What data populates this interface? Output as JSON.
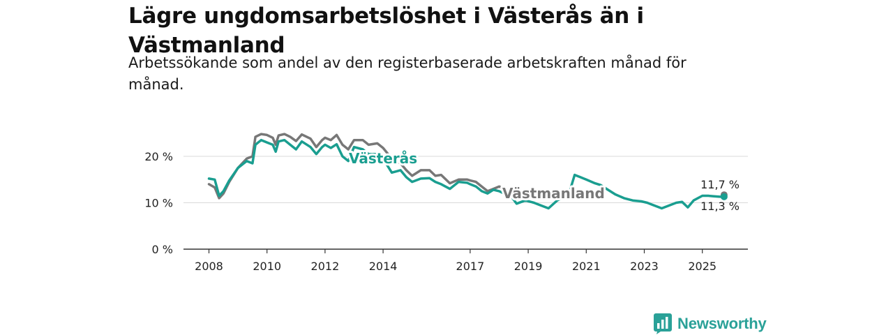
{
  "title": "Lägre ungdomsarbetslöshet i Västerås än i Västmanland",
  "subtitle": "Arbetssökande som andel av den registerbaserade arbetskraften månad för månad.",
  "brand": {
    "name": "Newsworthy",
    "icon": "bar-chart-icon",
    "color": "#2aa198"
  },
  "chart_data": {
    "type": "line",
    "title": "",
    "xlabel": "",
    "ylabel": "",
    "ylim": [
      0,
      25
    ],
    "xlim": [
      2008.0,
      2026.15
    ],
    "x_ticks": [
      {
        "value": 2008,
        "label": "2008"
      },
      {
        "value": 2010,
        "label": "2010"
      },
      {
        "value": 2012,
        "label": "2012"
      },
      {
        "value": 2014,
        "label": "2014"
      },
      {
        "value": 2017,
        "label": "2017"
      },
      {
        "value": 2019,
        "label": "2019"
      },
      {
        "value": 2021,
        "label": "2021"
      },
      {
        "value": 2023,
        "label": "2023"
      },
      {
        "value": 2025,
        "label": "2025"
      }
    ],
    "y_ticks": [
      {
        "value": 0,
        "label": "0 %"
      },
      {
        "value": 10,
        "label": "10 %"
      },
      {
        "value": 20,
        "label": "20 %"
      }
    ],
    "series": [
      {
        "name": "Västmanland",
        "color": "#777777",
        "label": "Västmanland",
        "end_label": "11,7 %",
        "x": [
          2008.0,
          2008.2,
          2008.35,
          2008.5,
          2008.7,
          2009.0,
          2009.3,
          2009.5,
          2009.6,
          2009.8,
          2010.0,
          2010.2,
          2010.3,
          2010.4,
          2010.6,
          2010.8,
          2011.0,
          2011.2,
          2011.5,
          2011.7,
          2011.9,
          2012.0,
          2012.2,
          2012.4,
          2012.6,
          2012.8,
          2013.0,
          2013.3,
          2013.5,
          2013.8,
          2014.0,
          2014.3,
          2014.6,
          2014.8,
          2015.0,
          2015.3,
          2015.6,
          2015.8,
          2016.0,
          2016.3,
          2016.6,
          2016.9,
          2017.0,
          2017.2,
          2017.4,
          2017.6,
          2017.8,
          2018.0,
          2018.1
        ],
        "values": [
          14.0,
          13.3,
          11.0,
          12.0,
          14.5,
          17.5,
          19.5,
          20.0,
          24.2,
          24.8,
          24.6,
          24.0,
          22.5,
          24.5,
          24.8,
          24.2,
          23.3,
          24.7,
          23.8,
          22.0,
          23.5,
          24.0,
          23.5,
          24.6,
          22.5,
          21.5,
          23.5,
          23.5,
          22.5,
          22.8,
          21.8,
          19.5,
          18.5,
          17.0,
          15.8,
          17.0,
          17.0,
          15.8,
          16.0,
          14.2,
          15.0,
          15.0,
          14.8,
          14.5,
          13.5,
          12.5,
          13.0,
          13.5,
          13.2
        ]
      },
      {
        "name": "Västerås",
        "color": "#1a9e90",
        "label": "Västerås",
        "end_label": "11,3 %",
        "x": [
          2008.0,
          2008.2,
          2008.35,
          2008.5,
          2008.7,
          2009.0,
          2009.3,
          2009.5,
          2009.6,
          2009.8,
          2010.0,
          2010.2,
          2010.3,
          2010.4,
          2010.6,
          2010.8,
          2011.0,
          2011.2,
          2011.5,
          2011.7,
          2011.9,
          2012.0,
          2012.2,
          2012.4,
          2012.6,
          2012.8,
          2013.0,
          2013.3,
          2013.5,
          2013.8,
          2014.0,
          2014.3,
          2014.6,
          2014.8,
          2015.0,
          2015.3,
          2015.6,
          2015.8,
          2016.0,
          2016.3,
          2016.6,
          2016.9,
          2017.0,
          2017.2,
          2017.4,
          2017.6,
          2017.8,
          2018.0,
          2018.1,
          2018.4,
          2018.6,
          2018.9,
          2019.2,
          2019.4,
          2019.7,
          2020.0,
          2020.4,
          2020.6,
          2020.8,
          2021.0,
          2021.3,
          2021.5,
          2021.7,
          2022.0,
          2022.3,
          2022.6,
          2022.9,
          2023.1,
          2023.3,
          2023.6,
          2023.9,
          2024.1,
          2024.3,
          2024.5,
          2024.7,
          2025.0,
          2025.2,
          2025.4,
          2025.6,
          2025.7
        ],
        "values": [
          15.2,
          15.0,
          11.5,
          12.5,
          14.8,
          17.5,
          19.0,
          18.5,
          22.5,
          23.5,
          23.0,
          22.5,
          21.0,
          23.2,
          23.5,
          22.5,
          21.5,
          23.2,
          22.0,
          20.5,
          22.0,
          22.5,
          21.8,
          22.6,
          20.0,
          19.0,
          22.0,
          21.5,
          20.5,
          20.5,
          19.5,
          16.5,
          17.0,
          15.5,
          14.5,
          15.2,
          15.3,
          14.5,
          14.0,
          13.0,
          14.5,
          14.3,
          14.0,
          13.5,
          12.5,
          12.0,
          12.8,
          12.5,
          12.2,
          11.5,
          9.8,
          10.5,
          10.0,
          9.5,
          8.8,
          10.5,
          11.8,
          16.0,
          15.5,
          15.0,
          14.2,
          13.8,
          13.0,
          11.8,
          11.0,
          10.5,
          10.3,
          10.0,
          9.5,
          8.8,
          9.5,
          10.0,
          10.2,
          9.0,
          10.5,
          11.5,
          11.5,
          11.4,
          11.3,
          11.3
        ]
      }
    ],
    "annotations": [
      {
        "text": "11,7 %",
        "x": 2025.75,
        "y": 11.7
      },
      {
        "text": "11,3 %",
        "x": 2025.75,
        "y": 11.3
      }
    ]
  }
}
